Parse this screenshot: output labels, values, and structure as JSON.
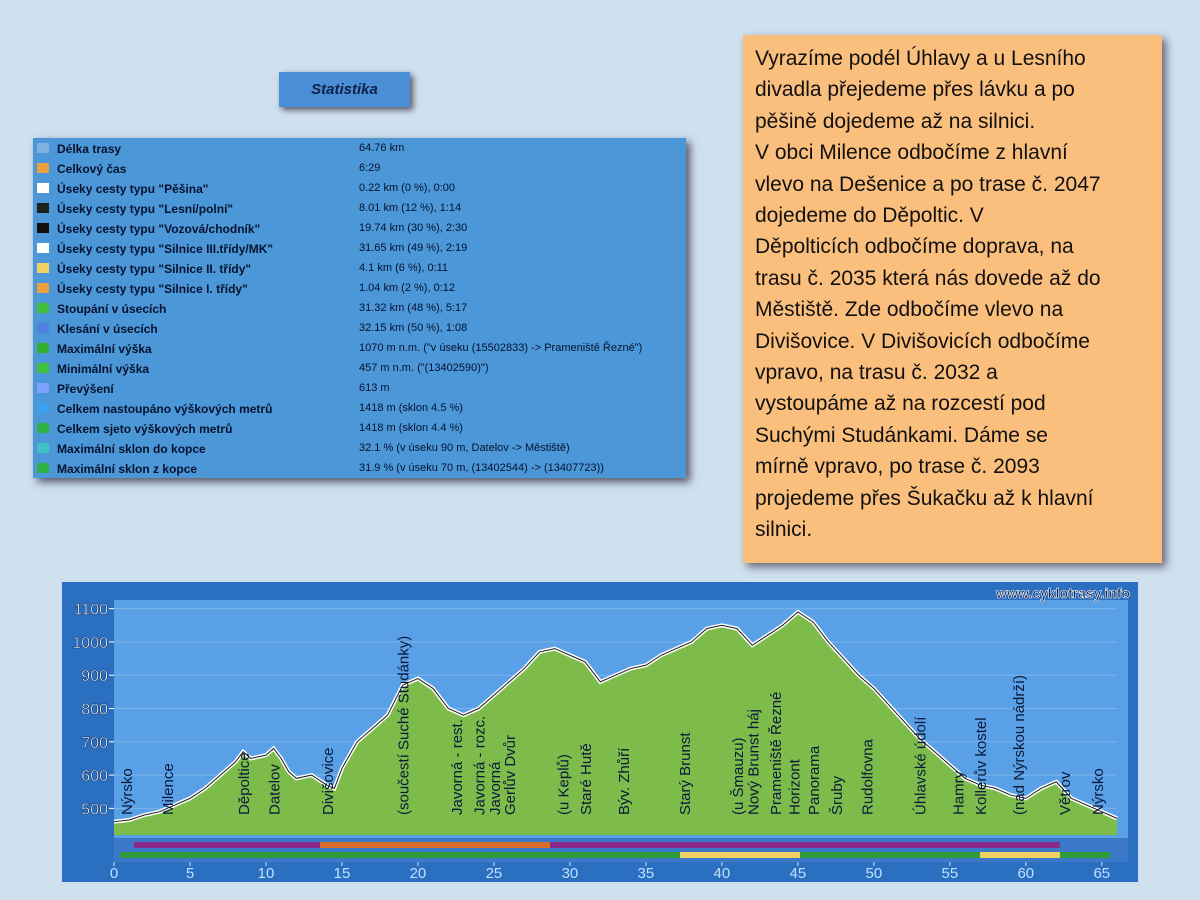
{
  "header": {
    "button": "Statistika"
  },
  "table": {
    "rows": [
      [
        "Délka trasy",
        "64.76 km"
      ],
      [
        "Celkový čas",
        "6:29"
      ],
      [
        "Úseky cesty typu \"Pěšina\"",
        "0.22 km (0 %), 0:00"
      ],
      [
        "Úseky cesty typu \"Lesní/polní\"",
        "8.01 km (12 %), 1:14"
      ],
      [
        "Úseky cesty typu \"Vozová/chodník\"",
        "19.74 km (30 %), 2:30"
      ],
      [
        "Úseky cesty typu \"Silnice III.třídy/MK\"",
        "31.65 km (49 %), 2:19"
      ],
      [
        "Úseky cesty typu \"Silnice II. třídy\"",
        "4.1 km (6 %), 0:11"
      ],
      [
        "Úseky cesty typu \"Silnice I. třídy\"",
        "1.04 km (2 %), 0:12"
      ],
      [
        "Stoupání v úsecích",
        "31.32 km (48 %), 5:17"
      ],
      [
        "Klesání v úsecích",
        "32.15 km (50 %), 1:08"
      ],
      [
        "Maximální výška",
        "1070 m n.m. (\"v úseku (15502833) -> Prameniště Řezné\")"
      ],
      [
        "Minimální výška",
        "457 m n.m. (\"(13402590)\")"
      ],
      [
        "Převýšení",
        "613 m"
      ],
      [
        "Celkem nastoupáno výškových metrů",
        "1418 m (sklon 4.5 %)"
      ],
      [
        "Celkem sjeto výškových metrů",
        "1418 m (sklon 4.4 %)"
      ],
      [
        "Maximální sklon do kopce",
        "32.1 % (v úseku 90 m, Datelov -> Městiště)"
      ],
      [
        "Maximální sklon z kopce",
        "31.9 % (v úseku 70 m, (13402544) -> (13407723))"
      ]
    ]
  },
  "note": {
    "lines": [
      "Vyrazíme podél Úhlavy a u Lesního",
      "divadla přejedeme přes lávku a po",
      "pěšině dojedeme až na silnici.",
      "V obci Milence odbočíme z hlavní",
      "vlevo na Dešenice a po trase č. 2047",
      "dojedeme do  Děpoltic. V",
      "Děpolticích odbočíme doprava, na",
      "trasu č. 2035 která nás dovede až do",
      "Městiště. Zde odbočíme vlevo na",
      "Divišovice. V Divišovicích odbočíme",
      "vpravo, na trasu č. 2032 a",
      "vystoupáme až na rozcestí pod",
      "Suchými Studánkami. Dáme se",
      "mírně vpravo, po trase č. 2093",
      "projedeme přes Šukačku až k hlavní",
      "silnici."
    ]
  },
  "chart_data": {
    "type": "area",
    "watermark": "www.cyklotrasy.info",
    "x": [
      0,
      1,
      2,
      3,
      4,
      5,
      6,
      7,
      8,
      8.5,
      9,
      10,
      10.5,
      11,
      11.5,
      12,
      13,
      14,
      14.5,
      15,
      16,
      17,
      18,
      19,
      20,
      21,
      22,
      23,
      24,
      25,
      26,
      27,
      28,
      29,
      30,
      31,
      32,
      33,
      34,
      35,
      36,
      37,
      38,
      39,
      40,
      41,
      42,
      43,
      44,
      45,
      46,
      47,
      48,
      49,
      50,
      51,
      52,
      53,
      54,
      55,
      56,
      57,
      58,
      59,
      60,
      61,
      62,
      63,
      64,
      65,
      66
    ],
    "values": [
      460,
      465,
      480,
      490,
      510,
      530,
      560,
      600,
      640,
      670,
      650,
      660,
      680,
      650,
      610,
      590,
      600,
      570,
      560,
      620,
      700,
      740,
      780,
      870,
      890,
      860,
      800,
      780,
      800,
      840,
      880,
      920,
      970,
      980,
      960,
      940,
      880,
      900,
      920,
      930,
      960,
      980,
      1000,
      1040,
      1050,
      1040,
      990,
      1020,
      1050,
      1090,
      1060,
      1000,
      950,
      900,
      860,
      810,
      760,
      710,
      670,
      630,
      590,
      570,
      560,
      540,
      530,
      560,
      580,
      530,
      510,
      490,
      470
    ],
    "color": "#7dbb4a",
    "line_color": "#ffffff",
    "xlim": [
      0,
      66
    ],
    "ylim": [
      420,
      1120
    ],
    "xticks": [
      0,
      5,
      10,
      15,
      20,
      25,
      30,
      35,
      40,
      45,
      50,
      55,
      60,
      65
    ],
    "yticks": [
      500,
      600,
      700,
      800,
      900,
      1000,
      1100
    ],
    "places": [
      {
        "name": "Nýrsko",
        "at": 0.8
      },
      {
        "name": "Milence",
        "at": 3.5
      },
      {
        "name": "Děpoltice",
        "at": 8.5
      },
      {
        "name": "Datelov",
        "at": 10.5
      },
      {
        "name": "Divišovice",
        "at": 14
      },
      {
        "name": "(součestí Suché Studánky)",
        "at": 19
      },
      {
        "name": "Javorná - rest.",
        "at": 22.5
      },
      {
        "name": "Javorná - rozc.",
        "at": 24
      },
      {
        "name": "Javorná",
        "at": 25
      },
      {
        "name": "Gerlův Dvůr",
        "at": 26
      },
      {
        "name": "(u Keplů)",
        "at": 29.5
      },
      {
        "name": "Staré Hutě",
        "at": 31
      },
      {
        "name": "Býv. Zhůří",
        "at": 33.5
      },
      {
        "name": "Starý Brunst",
        "at": 37.5
      },
      {
        "name": "(u Šmauzu)",
        "at": 41
      },
      {
        "name": "Nový Brunst háj",
        "at": 42
      },
      {
        "name": "Prameniště Řezné",
        "at": 43.5
      },
      {
        "name": "Horizont",
        "at": 44.7
      },
      {
        "name": "Panorama",
        "at": 46
      },
      {
        "name": "Šruby",
        "at": 47.5
      },
      {
        "name": "Rudolfovna",
        "at": 49.5
      },
      {
        "name": "Úhlavské údolí",
        "at": 53
      },
      {
        "name": "Hamry",
        "at": 55.5
      },
      {
        "name": "Kollerův kostel",
        "at": 57
      },
      {
        "name": "(nad Nýrskou nádrží)",
        "at": 59.5
      },
      {
        "name": "Větrov",
        "at": 62.5
      },
      {
        "name": "Nýrsko",
        "at": 64.7
      }
    ]
  }
}
